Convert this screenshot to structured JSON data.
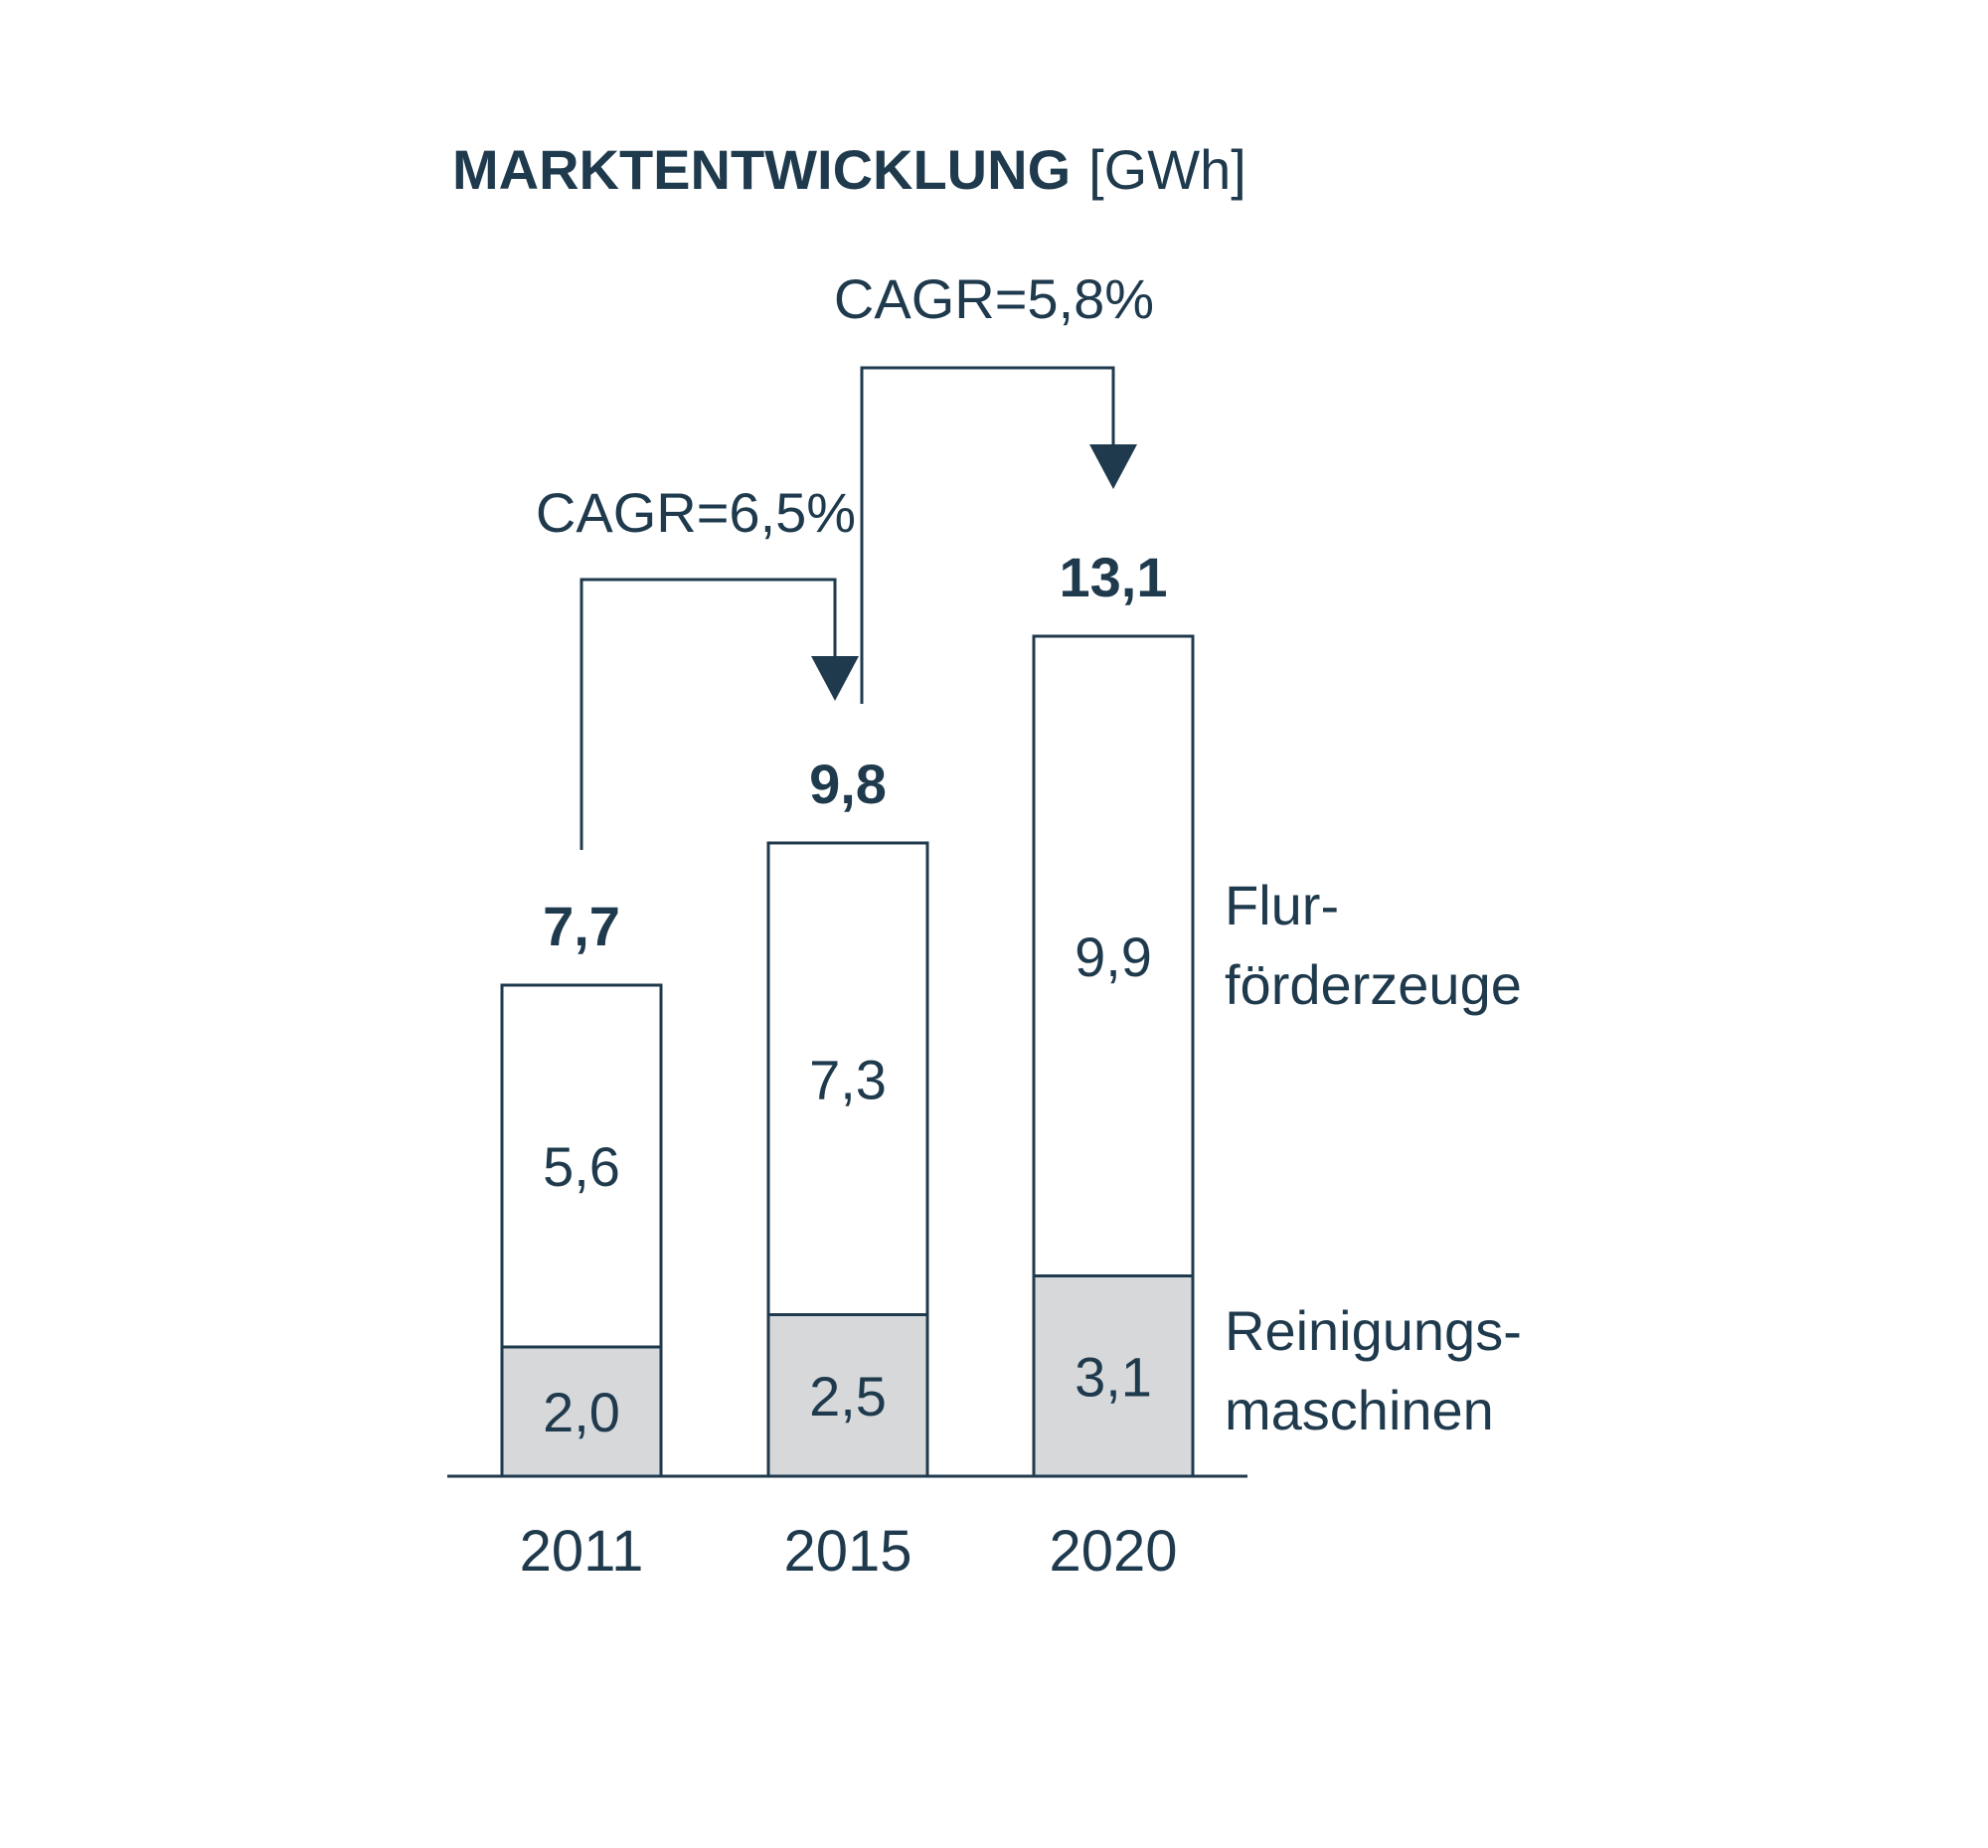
{
  "title": "MARKTENTWICKLUNG",
  "unit": "[GWh]",
  "chart_data": {
    "type": "bar",
    "stacked": true,
    "categories": [
      "2011",
      "2015",
      "2020"
    ],
    "series": [
      {
        "name": "Reinigungs-maschinen",
        "values": [
          2.0,
          2.5,
          3.1
        ],
        "labels": [
          "2,0",
          "2,5",
          "3,1"
        ],
        "color": "#d6d8da"
      },
      {
        "name": "Flur-förderzeuge",
        "values": [
          5.6,
          7.3,
          9.9
        ],
        "labels": [
          "5,6",
          "7,3",
          "9,9"
        ],
        "color": "#ffffff"
      }
    ],
    "totals": [
      7.7,
      9.8,
      13.1
    ],
    "total_labels": [
      "7,7",
      "9,8",
      "13,1"
    ],
    "legend": {
      "flur_line1": "Flur-",
      "flur_line2": "förderzeuge",
      "rein_line1": "Reinigungs-",
      "rein_line2": "maschinen"
    },
    "annotations": [
      {
        "from": "2011",
        "to": "2015",
        "text": "CAGR=6,5%"
      },
      {
        "from": "2015",
        "to": "2020",
        "text": "CAGR=5,8%"
      }
    ],
    "colors": {
      "ink": "#1f3a4d",
      "lower": "#d6d8da",
      "upper": "#ffffff"
    }
  }
}
